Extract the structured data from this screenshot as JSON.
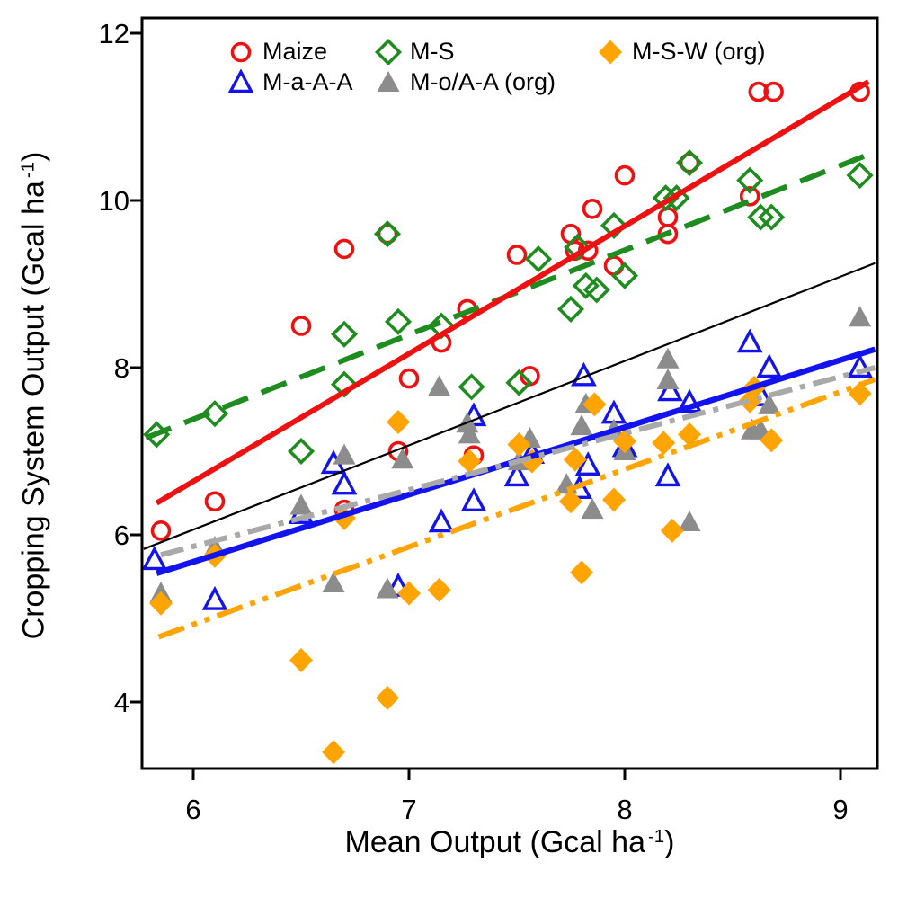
{
  "figure": {
    "legend": [
      {
        "label": "Maize",
        "marker": "circle-open",
        "color": "#EE1111"
      },
      {
        "label": "M-S",
        "marker": "diamond-open",
        "color": "#1E8C1E"
      },
      {
        "label": "M-S-W (org)",
        "marker": "diamond-filled",
        "color": "#FFA400"
      },
      {
        "label": "M-a-A-A",
        "marker": "triangle-open",
        "color": "#1313EF"
      },
      {
        "label": "M-o/A-A (org)",
        "marker": "triangle-filled",
        "color": "#8C8C8C"
      }
    ],
    "x_axis": {
      "title_base": "Mean Output (Gcal ha",
      "title_sup": "-1",
      "title_close": ")"
    },
    "y_axis": {
      "title_base": "Cropping System Output (Gcal ha",
      "title_sup": "-1",
      "title_close": ")"
    }
  },
  "chart_data": {
    "type": "scatter",
    "title": "",
    "xlabel": "Mean Output (Gcal ha-1)",
    "ylabel": "Cropping System Output (Gcal ha-1)",
    "xlim": [
      5.7625,
      9.1708
    ],
    "ylim": [
      3.2043,
      12.1828
    ],
    "grid": false,
    "legend_position": "top-inside",
    "x_ticks": [
      6,
      7,
      8,
      9
    ],
    "y_ticks": [
      4,
      6,
      8,
      10,
      12
    ],
    "reference_line": {
      "name": "1:1 reference",
      "color": "#000000",
      "width": 2.2,
      "dash": "",
      "x1": 5.77,
      "y1": 5.83,
      "x2": 9.16,
      "y2": 9.25
    },
    "series": [
      {
        "name": "Maize",
        "marker": "circle-open",
        "color": "#EE1111",
        "filled": false,
        "points": [
          [
            5.85,
            6.05
          ],
          [
            6.1,
            6.4
          ],
          [
            6.5,
            8.5
          ],
          [
            6.7,
            9.42
          ],
          [
            6.7,
            6.3
          ],
          [
            6.9,
            9.6
          ],
          [
            6.95,
            7.0
          ],
          [
            7.0,
            7.87
          ],
          [
            7.15,
            8.3
          ],
          [
            7.27,
            8.7
          ],
          [
            7.3,
            6.95
          ],
          [
            7.5,
            9.35
          ],
          [
            7.56,
            7.9
          ],
          [
            7.75,
            9.6
          ],
          [
            7.77,
            9.4
          ],
          [
            7.83,
            9.4
          ],
          [
            7.85,
            9.9
          ],
          [
            7.95,
            9.22
          ],
          [
            8.0,
            10.3
          ],
          [
            8.2,
            9.8
          ],
          [
            8.2,
            9.6
          ],
          [
            8.3,
            10.45
          ],
          [
            8.58,
            10.05
          ],
          [
            8.62,
            11.3
          ],
          [
            8.69,
            11.3
          ],
          [
            9.09,
            11.3
          ]
        ],
        "trend": {
          "x1": 5.83,
          "y1": 6.38,
          "x2": 9.13,
          "y2": 11.42,
          "dash": "",
          "width": 6,
          "color": "#EE1111",
          "z": 2
        }
      },
      {
        "name": "M-S",
        "marker": "diamond-open",
        "color": "#1E8C1E",
        "filled": false,
        "points": [
          [
            5.83,
            7.2
          ],
          [
            6.1,
            7.45
          ],
          [
            6.5,
            7.0
          ],
          [
            6.7,
            7.8
          ],
          [
            6.7,
            8.4
          ],
          [
            6.9,
            9.6
          ],
          [
            6.95,
            8.55
          ],
          [
            7.15,
            8.5
          ],
          [
            7.29,
            7.77
          ],
          [
            7.51,
            7.82
          ],
          [
            7.6,
            9.3
          ],
          [
            7.75,
            8.7
          ],
          [
            7.78,
            9.44
          ],
          [
            7.82,
            8.98
          ],
          [
            7.87,
            8.93
          ],
          [
            7.95,
            9.7
          ],
          [
            8.0,
            9.1
          ],
          [
            8.19,
            10.03
          ],
          [
            8.24,
            10.03
          ],
          [
            8.3,
            10.45
          ],
          [
            8.58,
            10.24
          ],
          [
            8.63,
            9.8
          ],
          [
            8.68,
            9.8
          ],
          [
            9.09,
            10.3
          ]
        ],
        "trend": {
          "x1": 5.78,
          "y1": 7.16,
          "x2": 9.16,
          "y2": 10.58,
          "dash": "30,16",
          "width": 6,
          "color": "#1E8C1E",
          "z": 1
        }
      },
      {
        "name": "M-a-A-A",
        "marker": "triangle-open",
        "color": "#1313EF",
        "filled": false,
        "points": [
          [
            5.82,
            5.7
          ],
          [
            6.1,
            5.22
          ],
          [
            6.5,
            6.25
          ],
          [
            6.65,
            6.85
          ],
          [
            6.7,
            6.6
          ],
          [
            6.95,
            5.38
          ],
          [
            7.15,
            6.15
          ],
          [
            7.3,
            6.4
          ],
          [
            7.3,
            7.42
          ],
          [
            7.5,
            6.7
          ],
          [
            7.57,
            6.97
          ],
          [
            7.79,
            6.55
          ],
          [
            7.81,
            7.9
          ],
          [
            7.83,
            6.83
          ],
          [
            7.95,
            7.45
          ],
          [
            8.0,
            7.05
          ],
          [
            8.2,
            6.7
          ],
          [
            8.21,
            7.72
          ],
          [
            8.3,
            7.58
          ],
          [
            8.58,
            8.3
          ],
          [
            8.63,
            7.66
          ],
          [
            8.67,
            8.0
          ],
          [
            9.09,
            8.0
          ]
        ],
        "trend": {
          "x1": 5.83,
          "y1": 5.54,
          "x2": 9.16,
          "y2": 8.22,
          "dash": "",
          "width": 6.5,
          "color": "#1313EF",
          "z": 4
        }
      },
      {
        "name": "M-o/A-A (org)",
        "marker": "triangle-filled",
        "color": "#8C8C8C",
        "filled": true,
        "points": [
          [
            5.85,
            5.3
          ],
          [
            6.1,
            5.85
          ],
          [
            6.5,
            6.35
          ],
          [
            6.65,
            5.42
          ],
          [
            6.7,
            6.95
          ],
          [
            6.9,
            5.35
          ],
          [
            6.97,
            6.9
          ],
          [
            7.14,
            7.77
          ],
          [
            7.27,
            7.33
          ],
          [
            7.28,
            7.2
          ],
          [
            7.56,
            7.15
          ],
          [
            7.51,
            6.88
          ],
          [
            7.73,
            6.6
          ],
          [
            7.8,
            7.3
          ],
          [
            7.82,
            7.56
          ],
          [
            7.85,
            6.3
          ],
          [
            7.95,
            7.25
          ],
          [
            8.0,
            7.0
          ],
          [
            8.2,
            8.1
          ],
          [
            8.2,
            7.85
          ],
          [
            8.3,
            6.15
          ],
          [
            8.59,
            7.25
          ],
          [
            8.63,
            7.25
          ],
          [
            8.67,
            7.55
          ],
          [
            9.09,
            8.6
          ]
        ],
        "trend": {
          "x1": 5.85,
          "y1": 5.76,
          "x2": 9.16,
          "y2": 8.0,
          "dash": "26,9,6,9",
          "width": 6,
          "color": "#A9A9A9",
          "z": 5
        }
      },
      {
        "name": "M-S-W (org)",
        "marker": "diamond-filled",
        "color": "#FFA400",
        "filled": true,
        "points": [
          [
            5.85,
            5.18
          ],
          [
            6.1,
            5.75
          ],
          [
            6.5,
            4.5
          ],
          [
            6.65,
            3.4
          ],
          [
            6.7,
            6.2
          ],
          [
            6.9,
            4.05
          ],
          [
            6.95,
            7.35
          ],
          [
            7.0,
            5.3
          ],
          [
            7.14,
            5.34
          ],
          [
            7.28,
            6.88
          ],
          [
            7.51,
            7.08
          ],
          [
            7.57,
            6.88
          ],
          [
            7.77,
            6.9
          ],
          [
            7.75,
            6.4
          ],
          [
            7.8,
            5.55
          ],
          [
            7.86,
            7.56
          ],
          [
            7.95,
            6.42
          ],
          [
            8.0,
            7.12
          ],
          [
            8.18,
            7.1
          ],
          [
            8.22,
            6.05
          ],
          [
            8.3,
            7.2
          ],
          [
            8.58,
            7.6
          ],
          [
            8.6,
            7.76
          ],
          [
            8.68,
            7.13
          ],
          [
            9.09,
            7.69
          ]
        ],
        "trend": {
          "x1": 5.84,
          "y1": 4.78,
          "x2": 9.16,
          "y2": 7.86,
          "dash": "30,9,6,9,6,9",
          "width": 6,
          "color": "#FFA400",
          "z": 3
        }
      }
    ]
  }
}
